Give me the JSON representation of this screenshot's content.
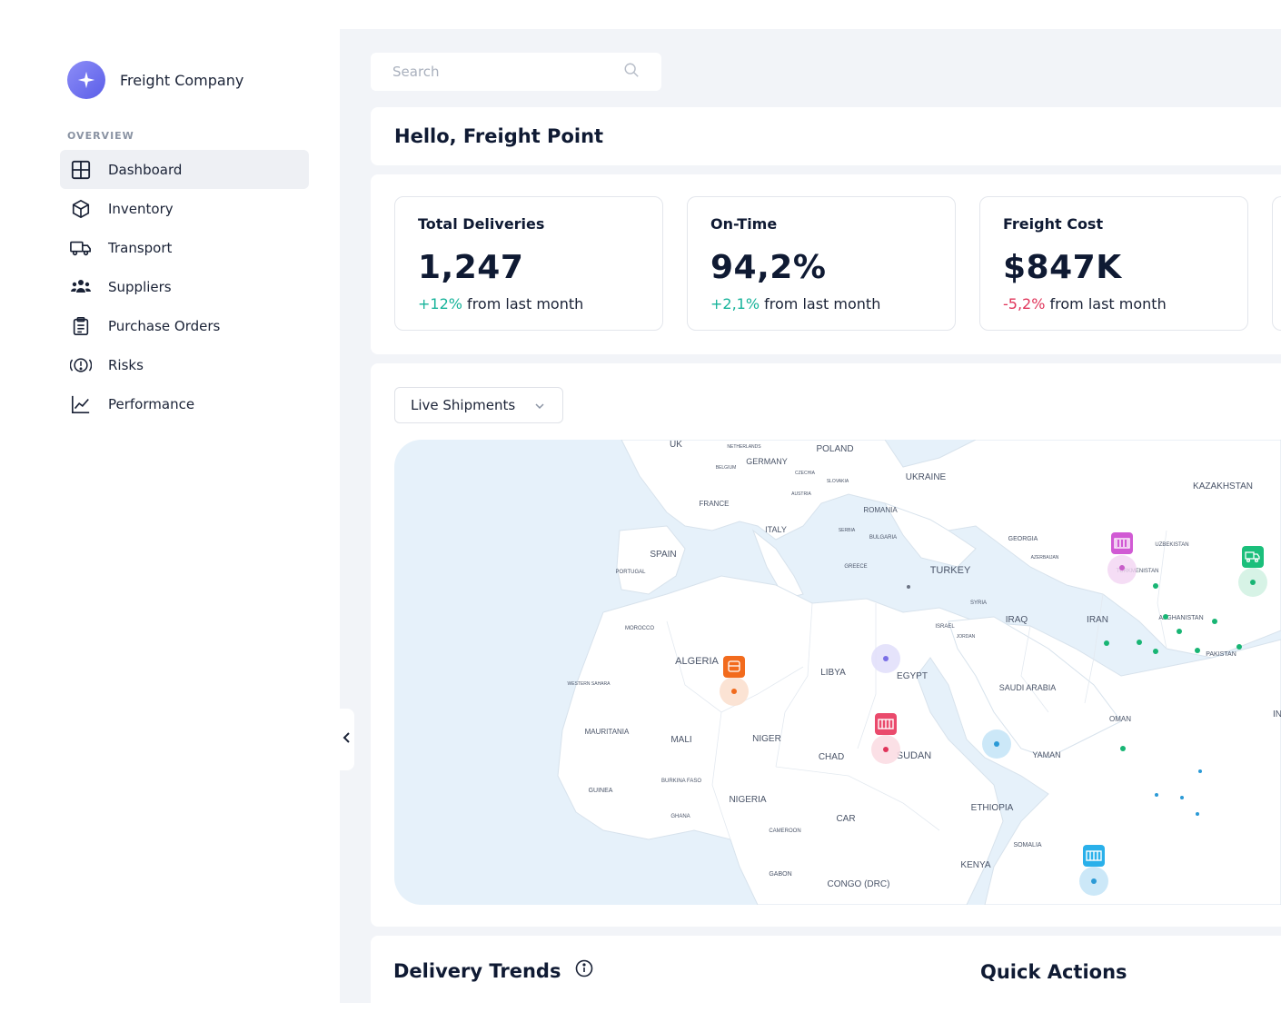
{
  "brand": {
    "name": "Freight Company",
    "logo_icon": "compass-star-icon"
  },
  "sidebar": {
    "section_label": "OVERVIEW",
    "items": [
      {
        "label": "Dashboard",
        "icon": "grid-icon",
        "active": true
      },
      {
        "label": "Inventory",
        "icon": "box-icon",
        "active": false
      },
      {
        "label": "Transport",
        "icon": "truck-icon",
        "active": false
      },
      {
        "label": "Suppliers",
        "icon": "users-icon",
        "active": false
      },
      {
        "label": "Purchase Orders",
        "icon": "clipboard-icon",
        "active": false
      },
      {
        "label": "Risks",
        "icon": "alert-icon",
        "active": false
      },
      {
        "label": "Performance",
        "icon": "chart-line-icon",
        "active": false
      }
    ]
  },
  "search": {
    "placeholder": "Search",
    "value": ""
  },
  "greeting": "Hello, Freight Point",
  "stats": [
    {
      "title": "Total Deliveries",
      "value": "1,247",
      "change": "+12%",
      "change_suffix": " from last month",
      "trend": "up"
    },
    {
      "title": "On-Time",
      "value": "94,2%",
      "change": "+2,1%",
      "change_suffix": " from last month",
      "trend": "up"
    },
    {
      "title": "Freight Cost",
      "value": "$847K",
      "change": "-5,2%",
      "change_suffix": " from last month",
      "trend": "down"
    }
  ],
  "map": {
    "dropdown_label": "Live Shipments",
    "country_labels": [
      "UK",
      "POLAND",
      "GERMANY",
      "NETHERLANDS",
      "BELGIUM",
      "CZECHIA",
      "SLOVAKIA",
      "AUSTRIA",
      "UKRAINE",
      "KAZAKHSTAN",
      "FRANCE",
      "ROMANIA",
      "ITALY",
      "SERBIA",
      "BULGARIA",
      "GEORGIA",
      "UZBEKISTAN",
      "AZERBAIJAN",
      "SPAIN",
      "PORTUGAL",
      "GREECE",
      "TURKEY",
      "TURKMENISTAN",
      "SYRIA",
      "IRAQ",
      "IRAN",
      "ISRAEL",
      "JORDAN",
      "AFGHANISTAN",
      "MOROCCO",
      "ALGERIA",
      "LIBYA",
      "EGYPT",
      "PAKISTAN",
      "WESTERN SAHARA",
      "SAUDI ARABIA",
      "OMAN",
      "MAURITANIA",
      "MALI",
      "NIGER",
      "CHAD",
      "SUDAN",
      "YAMAN",
      "GUINEA",
      "BURKINA FASO",
      "NIGERIA",
      "ETHIOPIA",
      "GHANA",
      "CAMEROON",
      "CAR",
      "SOMALIA",
      "KENYA",
      "GABON",
      "CONGO (DRC)",
      "IN"
    ]
  },
  "colors": {
    "accent": "#5b5ee8",
    "positive": "#17b39a",
    "negative": "#e0345a",
    "sea": "#e6f1fa",
    "land": "#ffffff"
  },
  "bottom": {
    "delivery_trends": "Delivery Trends",
    "quick_actions": "Quick Actions"
  }
}
